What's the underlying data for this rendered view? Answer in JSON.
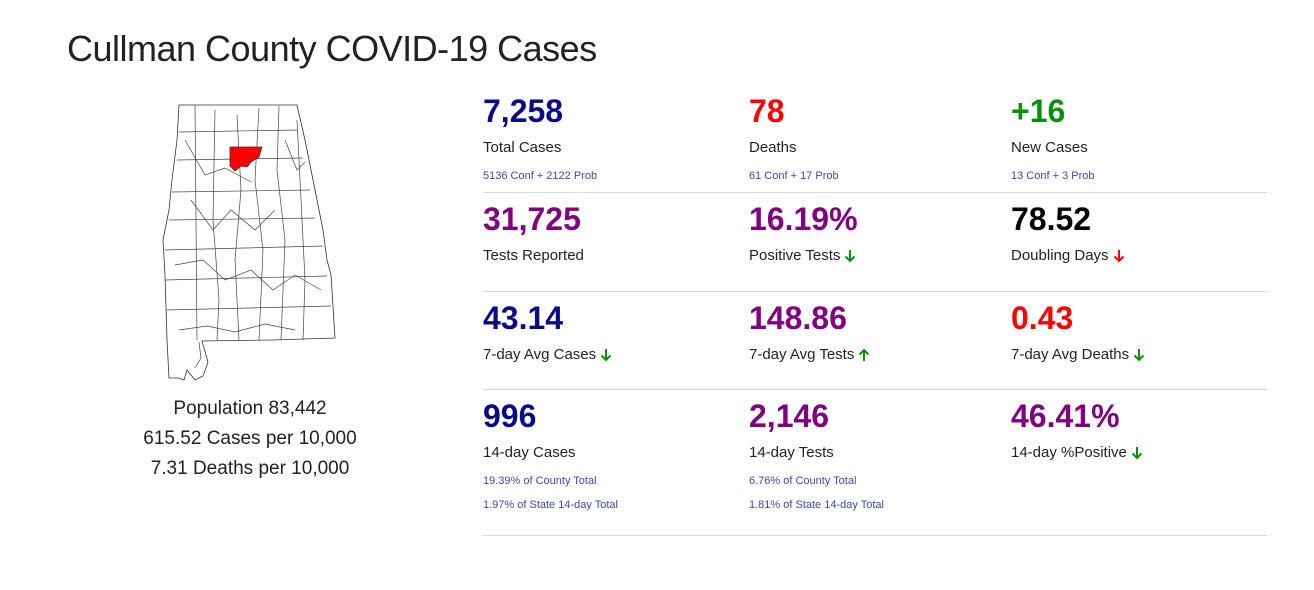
{
  "page": {
    "title": "Cullman County COVID-19 Cases"
  },
  "county": {
    "population": "Population 83,442",
    "cases_per": "615.52 Cases per 10,000",
    "deaths_per": "7.31 Deaths per 10,000",
    "highlight_color": "#ff0000"
  },
  "colors": {
    "navy": "#0a0a8a",
    "red": "#ff0000",
    "green": "#0a8f0a",
    "purple": "#800080",
    "black": "#000000",
    "link": "#3a4ab0"
  },
  "stats": {
    "total_cases": {
      "value": "7,258",
      "label": "Total Cases",
      "sub": "5136 Conf + 2122 Prob"
    },
    "deaths": {
      "value": "78",
      "label": "Deaths",
      "sub": "61 Conf + 17 Prob"
    },
    "new_cases": {
      "value": "+16",
      "label": "New Cases",
      "sub": "13 Conf + 3 Prob"
    },
    "tests_reported": {
      "value": "31,725",
      "label": "Tests Reported"
    },
    "positive_tests": {
      "value": "16.19%",
      "label": "Positive Tests",
      "trend": "down",
      "trend_icon": "arrow-down-icon",
      "trend_color": "#0a8f0a"
    },
    "doubling_days": {
      "value": "78.52",
      "label": "Doubling Days",
      "trend": "down",
      "trend_icon": "arrow-down-icon",
      "trend_color": "#ff0000"
    },
    "avg_cases_7day": {
      "value": "43.14",
      "label": "7-day Avg Cases",
      "trend": "down",
      "trend_icon": "arrow-down-icon",
      "trend_color": "#0a8f0a"
    },
    "avg_tests_7day": {
      "value": "148.86",
      "label": "7-day Avg Tests",
      "trend": "up",
      "trend_icon": "arrow-up-icon",
      "trend_color": "#0a8f0a"
    },
    "avg_deaths_7day": {
      "value": "0.43",
      "label": "7-day Avg Deaths",
      "trend": "down",
      "trend_icon": "arrow-down-icon",
      "trend_color": "#0a8f0a"
    },
    "cases_14day": {
      "value": "996",
      "label": "14-day Cases",
      "sub1": "19.39% of County Total",
      "sub2": "1.97% of State 14-day Total"
    },
    "tests_14day": {
      "value": "2,146",
      "label": "14-day Tests",
      "sub1": "6.76% of County Total",
      "sub2": "1.81% of State 14-day Total"
    },
    "positive_14day": {
      "value": "46.41%",
      "label": "14-day %Positive",
      "trend": "down",
      "trend_icon": "arrow-down-icon",
      "trend_color": "#0a8f0a"
    }
  }
}
